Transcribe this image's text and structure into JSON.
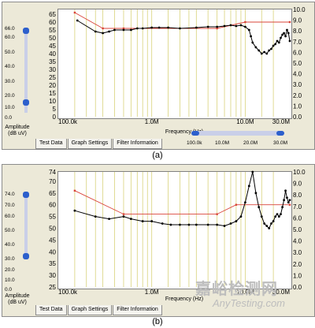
{
  "chart_data": [
    {
      "type": "line",
      "panel_label": "(a)",
      "xlabel": "Frequency (Hz)",
      "ylabel": "Amplitude\n(dB uV)",
      "x_scale": "log",
      "xlim": [
        100000,
        30000000
      ],
      "x_ticks": [
        "100.0k",
        "1.0M",
        "10.0M",
        "30.0M"
      ],
      "ylim": [
        0,
        68
      ],
      "y_ticks": [
        "0",
        "5",
        "10",
        "15",
        "20",
        "25",
        "30",
        "35",
        "40",
        "45",
        "50",
        "55",
        "60",
        "65"
      ],
      "left_scale": [
        "66.0",
        "60.0",
        "50.0",
        "40.0",
        "30.0",
        "20.0",
        "10.0",
        "0.0"
      ],
      "right_scale": [
        "10.0",
        "9.0",
        "8.0",
        "7.0",
        "6.0",
        "5.0",
        "4.0",
        "3.0",
        "2.0",
        "1.0",
        "0.0"
      ],
      "x_range_slider": [
        "100.0k",
        "10.0M",
        "20.0M",
        "30.0M"
      ],
      "grid_x": [
        150000,
        200000,
        250000,
        300000,
        400000,
        500000,
        600000,
        700000,
        800000,
        900000,
        1000000,
        1500000,
        2000000,
        2500000,
        3000000,
        4000000,
        5000000,
        6000000,
        7000000,
        8000000,
        9000000,
        10000000,
        15000000,
        20000000
      ],
      "series": [
        {
          "name": "",
          "color": "#d9443a",
          "marker": false,
          "x": [
            150000,
            300000,
            500000,
            5000000,
            10000000,
            30000000
          ],
          "y": [
            66,
            56,
            56,
            56,
            60,
            60
          ]
        },
        {
          "name": "",
          "color": "#000000",
          "marker": true,
          "x": [
            160000,
            250000,
            300000,
            350000,
            400000,
            500000,
            600000,
            700000,
            800000,
            1000000,
            1200000,
            1500000,
            2000000,
            3000000,
            4000000,
            5000000,
            6000000,
            7000000,
            8000000,
            9000000,
            10000000,
            11000000,
            11500000,
            12000000,
            13000000,
            14000000,
            15000000,
            16000000,
            17000000,
            18000000,
            19000000,
            20000000,
            21000000,
            22000000,
            23000000,
            24000000,
            25000000,
            26000000,
            27000000,
            28000000,
            29000000,
            30000000
          ],
          "y": [
            61,
            54,
            53,
            54,
            55,
            55,
            55,
            56,
            56,
            56.5,
            56.5,
            56.5,
            56,
            56.5,
            57,
            57,
            57.5,
            58,
            57.5,
            58,
            57,
            55,
            51,
            47,
            44,
            42,
            40,
            41,
            40,
            42,
            43,
            45,
            46,
            48,
            47,
            50,
            52,
            53,
            51,
            55,
            53,
            48
          ]
        }
      ],
      "tabs": [
        "Test Data",
        "Graph Settings",
        "Filter Information"
      ]
    },
    {
      "type": "line",
      "panel_label": "(b)",
      "xlabel": "Frequency (Hz)",
      "ylabel": "Amplitude\n(dB uV)",
      "x_scale": "log",
      "xlim": [
        100000,
        30000000
      ],
      "x_ticks": [
        "100.0k",
        "1.0M",
        "10.0M",
        "30.0M"
      ],
      "ylim": [
        25,
        74
      ],
      "y_ticks": [
        "25",
        "30",
        "35",
        "40",
        "45",
        "50",
        "55",
        "60",
        "65",
        "70",
        "74"
      ],
      "left_scale": [
        "74.0",
        "70.0",
        "60.0",
        "50.0",
        "40.0",
        "30.0",
        "20.0",
        "10.0",
        "0.0"
      ],
      "right_scale": [
        "10.0",
        "9.0",
        "8.0",
        "7.0",
        "6.0",
        "5.0",
        "4.0",
        "3.0",
        "2.0",
        "1.0",
        "0.0"
      ],
      "grid_x": [
        150000,
        200000,
        250000,
        300000,
        400000,
        500000,
        600000,
        700000,
        800000,
        900000,
        1000000,
        1500000,
        2000000,
        2500000,
        3000000,
        4000000,
        5000000,
        6000000,
        7000000,
        8000000,
        9000000,
        10000000,
        15000000,
        20000000
      ],
      "series": [
        {
          "name": "",
          "color": "#d9443a",
          "marker": false,
          "x": [
            150000,
            500000,
            5000000,
            8000000,
            30000000
          ],
          "y": [
            66,
            56,
            56,
            60,
            60
          ]
        },
        {
          "name": "",
          "color": "#000000",
          "marker": true,
          "x": [
            150000,
            250000,
            350000,
            500000,
            600000,
            800000,
            1000000,
            1300000,
            1600000,
            2000000,
            2500000,
            3000000,
            4000000,
            5000000,
            6000000,
            7000000,
            8000000,
            9000000,
            10000000,
            11000000,
            12000000,
            13000000,
            14000000,
            15000000,
            16000000,
            17000000,
            18000000,
            19000000,
            20000000,
            21000000,
            22000000,
            23000000,
            24000000,
            25000000,
            26000000,
            27000000,
            28000000,
            29000000,
            30000000
          ],
          "y": [
            57.5,
            55,
            54,
            55,
            54,
            53,
            53,
            52,
            51.5,
            51.5,
            51.5,
            51.5,
            51.5,
            51.5,
            51,
            52,
            53,
            55,
            61,
            68,
            74,
            65,
            59,
            55,
            52,
            51,
            50,
            52,
            53,
            55,
            56,
            55,
            56,
            59,
            62,
            66,
            63,
            61,
            62
          ]
        }
      ],
      "tabs": [
        "Test Data",
        "Graph Settings",
        "Filter Information"
      ]
    }
  ],
  "watermark": {
    "cn": "嘉峪检测网",
    "en": "AnyTesting.com"
  }
}
